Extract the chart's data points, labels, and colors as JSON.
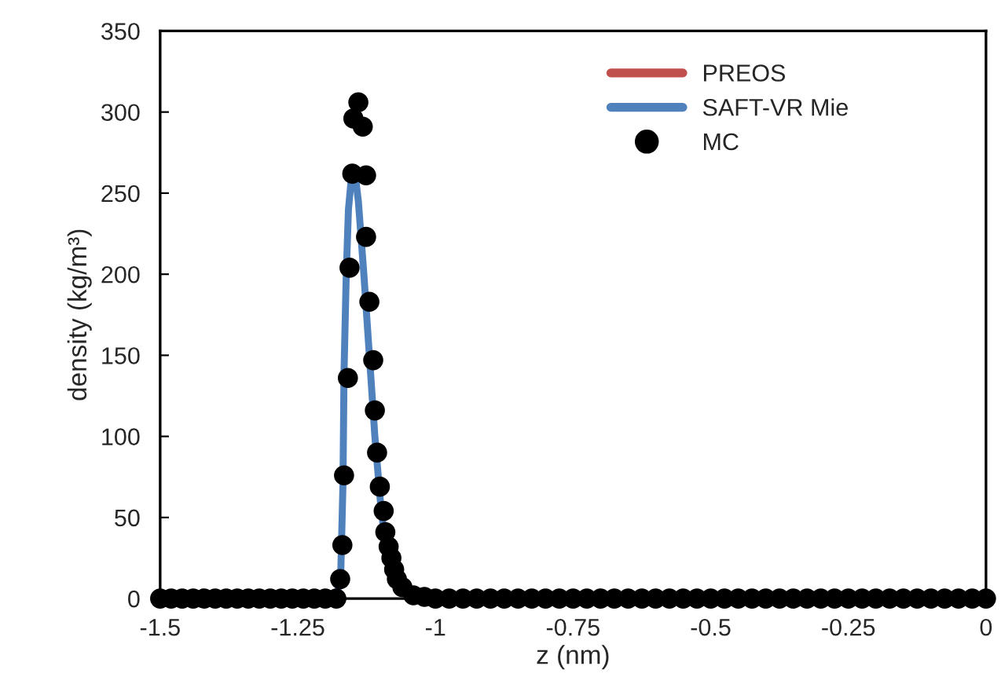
{
  "chart_data": {
    "type": "line",
    "xlabel": "z (nm)",
    "ylabel": "density (kg/m³)",
    "xlim": [
      -1.5,
      0
    ],
    "ylim": [
      0,
      350
    ],
    "xticks": [
      -1.5,
      -1.25,
      -1,
      -0.75,
      -0.5,
      -0.25,
      0
    ],
    "yticks": [
      0,
      50,
      100,
      150,
      200,
      250,
      300,
      350
    ],
    "grid": false,
    "legend": "top right",
    "series": [
      {
        "name": "PREOS",
        "type": "line",
        "color": "#c0504d"
      },
      {
        "name": "SAFT-VR Mie",
        "color": "#4f81bd",
        "x": [
          -1.5,
          -1.18,
          -1.172,
          -1.168,
          -1.166,
          -1.162,
          -1.158,
          -1.152,
          -1.146,
          -1.14,
          -1.13,
          -1.12,
          -1.11,
          -1.1,
          -1.09,
          -1.08
        ],
        "values": [
          0,
          0,
          15,
          70,
          140,
          200,
          240,
          262,
          262,
          245,
          200,
          150,
          100,
          60,
          30,
          15
        ]
      },
      {
        "name": "MC",
        "type": "scatter",
        "color": "#000000",
        "marker": "circle",
        "x": [
          -1.5,
          -1.48,
          -1.46,
          -1.44,
          -1.42,
          -1.4,
          -1.38,
          -1.36,
          -1.34,
          -1.32,
          -1.3,
          -1.28,
          -1.26,
          -1.24,
          -1.22,
          -1.2,
          -1.18,
          -1.173,
          -1.169,
          -1.166,
          -1.159,
          -1.156,
          -1.151,
          -1.149,
          -1.14,
          -1.132,
          -1.126,
          -1.126,
          -1.12,
          -1.113,
          -1.11,
          -1.106,
          -1.101,
          -1.094,
          -1.091,
          -1.085,
          -1.08,
          -1.075,
          -1.07,
          -1.06,
          -1.04,
          -1.02,
          -1.0,
          -0.975,
          -0.95,
          -0.925,
          -0.9,
          -0.875,
          -0.85,
          -0.825,
          -0.8,
          -0.775,
          -0.75,
          -0.725,
          -0.7,
          -0.675,
          -0.65,
          -0.625,
          -0.6,
          -0.575,
          -0.55,
          -0.525,
          -0.5,
          -0.475,
          -0.45,
          -0.425,
          -0.4,
          -0.375,
          -0.35,
          -0.325,
          -0.3,
          -0.275,
          -0.25,
          -0.225,
          -0.2,
          -0.175,
          -0.15,
          -0.125,
          -0.1,
          -0.075,
          -0.05,
          -0.025,
          0
        ],
        "values": [
          0,
          0,
          0,
          0,
          0,
          0,
          0,
          0,
          0,
          0,
          0,
          0,
          0,
          0,
          0,
          0,
          0,
          12,
          33,
          76,
          136,
          204,
          262,
          296,
          306,
          291,
          261,
          223,
          183,
          147,
          116,
          90,
          69,
          54,
          41,
          32,
          25,
          18,
          12,
          7,
          2,
          1,
          0,
          0,
          0,
          0,
          0,
          0,
          0,
          0,
          0,
          0,
          0,
          0,
          0,
          0,
          0,
          0,
          0,
          0,
          0,
          0,
          0,
          0,
          0,
          0,
          0,
          0,
          0,
          0,
          0,
          0,
          0,
          0,
          0,
          0,
          0,
          0,
          0,
          0,
          0,
          0,
          0
        ]
      }
    ]
  }
}
